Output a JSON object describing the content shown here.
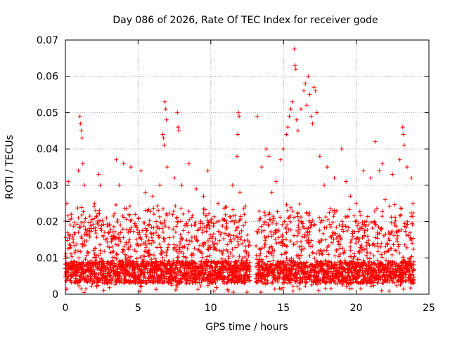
{
  "chart_data": {
    "type": "scatter",
    "title": "Day 086 of 2026, Rate Of TEC Index for receiver gode",
    "xlabel": "GPS time / hours",
    "ylabel": "ROTI / TECUs",
    "xlim": [
      0,
      25
    ],
    "ylim": [
      0,
      0.07
    ],
    "xticks": [
      0,
      5,
      10,
      15,
      20,
      25
    ],
    "xtick_labels": [
      "0",
      "5",
      "10",
      "15",
      "20",
      "25"
    ],
    "yticks": [
      0,
      0.01,
      0.02,
      0.03,
      0.04,
      0.05,
      0.06,
      0.07
    ],
    "ytick_labels": [
      "0",
      "0.01",
      "0.02",
      "0.03",
      "0.04",
      "0.05",
      "0.06",
      "0.07"
    ],
    "grid": true,
    "marker": "+",
    "color": "#ff0000",
    "data_gap_hours": [
      12.7,
      13.1
    ],
    "series": [
      {
        "name": "ROTI",
        "points": [
          [
            0.1,
            0.025
          ],
          [
            0.2,
            0.031
          ],
          [
            0.4,
            0.022
          ],
          [
            0.9,
            0.034
          ],
          [
            1.0,
            0.049
          ],
          [
            1.05,
            0.047
          ],
          [
            1.1,
            0.045
          ],
          [
            1.15,
            0.043
          ],
          [
            1.2,
            0.036
          ],
          [
            1.3,
            0.03
          ],
          [
            2.0,
            0.025
          ],
          [
            2.3,
            0.033
          ],
          [
            2.4,
            0.03
          ],
          [
            3.5,
            0.037
          ],
          [
            3.7,
            0.03
          ],
          [
            4.0,
            0.036
          ],
          [
            4.5,
            0.035
          ],
          [
            5.2,
            0.034
          ],
          [
            5.5,
            0.028
          ],
          [
            6.0,
            0.027
          ],
          [
            6.5,
            0.03
          ],
          [
            6.7,
            0.044
          ],
          [
            6.75,
            0.043
          ],
          [
            6.8,
            0.041
          ],
          [
            6.85,
            0.053
          ],
          [
            6.9,
            0.051
          ],
          [
            6.95,
            0.048
          ],
          [
            7.0,
            0.035
          ],
          [
            7.5,
            0.032
          ],
          [
            7.7,
            0.05
          ],
          [
            7.75,
            0.046
          ],
          [
            7.8,
            0.045
          ],
          [
            8.0,
            0.03
          ],
          [
            8.5,
            0.036
          ],
          [
            9.0,
            0.029
          ],
          [
            9.5,
            0.027
          ],
          [
            9.8,
            0.034
          ],
          [
            10.5,
            0.025
          ],
          [
            11.0,
            0.024
          ],
          [
            11.5,
            0.03
          ],
          [
            11.8,
            0.038
          ],
          [
            11.85,
            0.044
          ],
          [
            11.9,
            0.05
          ],
          [
            11.95,
            0.049
          ],
          [
            12.0,
            0.028
          ],
          [
            12.3,
            0.022
          ],
          [
            13.2,
            0.049
          ],
          [
            13.5,
            0.035
          ],
          [
            13.8,
            0.04
          ],
          [
            14.0,
            0.038
          ],
          [
            14.2,
            0.028
          ],
          [
            14.5,
            0.031
          ],
          [
            14.8,
            0.037
          ],
          [
            15.0,
            0.04
          ],
          [
            15.2,
            0.044
          ],
          [
            15.3,
            0.046
          ],
          [
            15.4,
            0.049
          ],
          [
            15.5,
            0.051
          ],
          [
            15.6,
            0.053
          ],
          [
            15.75,
            0.0675
          ],
          [
            15.8,
            0.063
          ],
          [
            15.85,
            0.062
          ],
          [
            15.9,
            0.048
          ],
          [
            16.0,
            0.045
          ],
          [
            16.2,
            0.051
          ],
          [
            16.4,
            0.056
          ],
          [
            16.5,
            0.058
          ],
          [
            16.6,
            0.052
          ],
          [
            16.7,
            0.06
          ],
          [
            16.8,
            0.055
          ],
          [
            16.9,
            0.049
          ],
          [
            17.0,
            0.047
          ],
          [
            17.1,
            0.057
          ],
          [
            17.2,
            0.056
          ],
          [
            17.3,
            0.05
          ],
          [
            17.5,
            0.038
          ],
          [
            17.8,
            0.03
          ],
          [
            18.0,
            0.035
          ],
          [
            18.5,
            0.032
          ],
          [
            19.0,
            0.04
          ],
          [
            19.3,
            0.031
          ],
          [
            19.6,
            0.027
          ],
          [
            20.0,
            0.025
          ],
          [
            20.5,
            0.034
          ],
          [
            21.0,
            0.032
          ],
          [
            21.3,
            0.042
          ],
          [
            21.6,
            0.034
          ],
          [
            21.8,
            0.036
          ],
          [
            22.0,
            0.026
          ],
          [
            22.5,
            0.033
          ],
          [
            23.0,
            0.037
          ],
          [
            23.2,
            0.046
          ],
          [
            23.25,
            0.044
          ],
          [
            23.3,
            0.041
          ],
          [
            23.5,
            0.035
          ],
          [
            23.8,
            0.032
          ],
          [
            23.9,
            0.025
          ]
        ]
      }
    ],
    "dense_band": {
      "x_range": [
        0,
        24
      ],
      "base_range": [
        0.003,
        0.009
      ],
      "typical_max": 0.025,
      "min_value": 0.0005
    }
  }
}
